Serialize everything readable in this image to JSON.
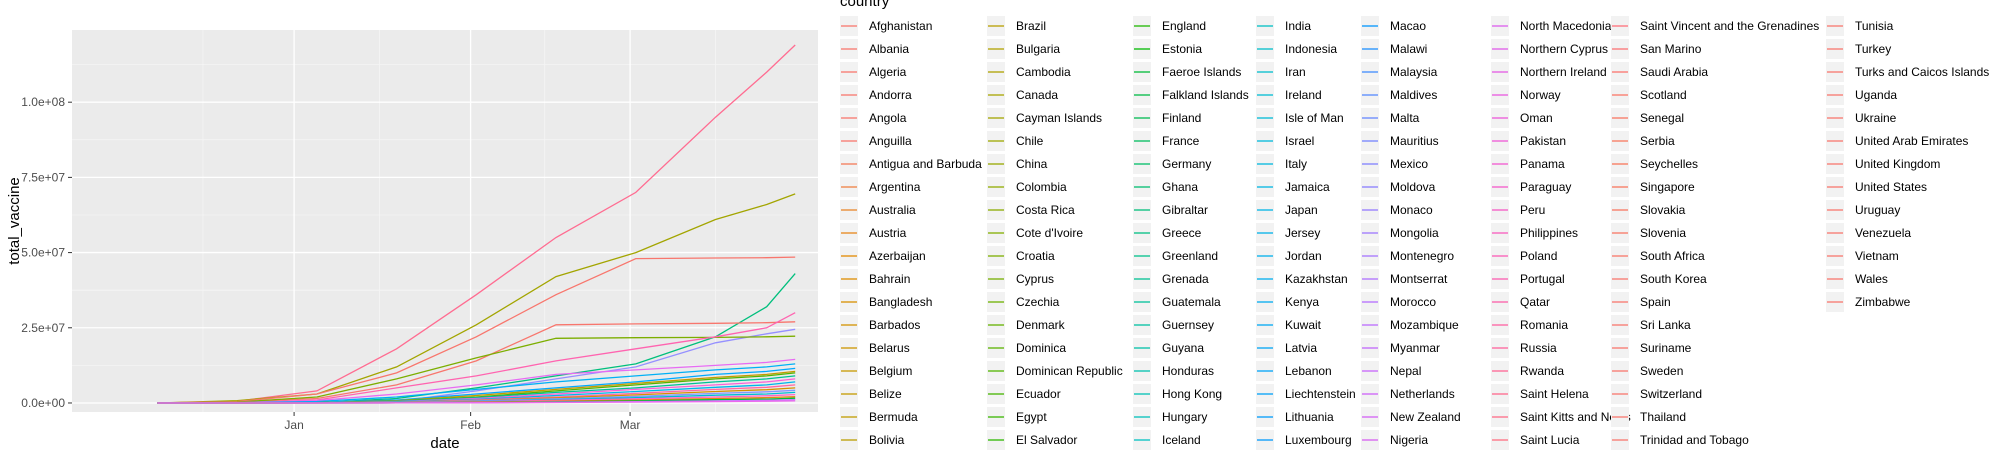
{
  "chart_data": {
    "type": "line",
    "title": "",
    "xlabel": "date",
    "ylabel": "total_vaccine",
    "x_ticks": [
      "Jan",
      "Feb",
      "Mar"
    ],
    "y_ticks": [
      "0.0e+00",
      "2.5e+07",
      "5.0e+07",
      "7.5e+07",
      "1.0e+08"
    ],
    "ylim": [
      -3000000,
      124000000
    ],
    "grid": true,
    "legend_title": "country",
    "legend_position": "right",
    "x_dates": [
      "2020-12-08",
      "2020-12-22",
      "2021-01-05",
      "2021-01-19",
      "2021-02-02",
      "2021-02-16",
      "2021-03-02",
      "2021-03-16",
      "2021-03-25",
      "2021-03-30"
    ],
    "countries": [
      "Afghanistan",
      "Albania",
      "Algeria",
      "Andorra",
      "Angola",
      "Anguilla",
      "Antigua and Barbuda",
      "Argentina",
      "Australia",
      "Austria",
      "Azerbaijan",
      "Bahrain",
      "Bangladesh",
      "Barbados",
      "Belarus",
      "Belgium",
      "Belize",
      "Bermuda",
      "Bolivia",
      "Brazil",
      "Bulgaria",
      "Cambodia",
      "Canada",
      "Cayman Islands",
      "Chile",
      "China",
      "Colombia",
      "Costa Rica",
      "Cote d'Ivoire",
      "Croatia",
      "Cyprus",
      "Czechia",
      "Denmark",
      "Dominica",
      "Dominican Republic",
      "Ecuador",
      "Egypt",
      "El Salvador",
      "England",
      "Estonia",
      "Faeroe Islands",
      "Falkland Islands",
      "Finland",
      "France",
      "Germany",
      "Ghana",
      "Gibraltar",
      "Greece",
      "Greenland",
      "Grenada",
      "Guatemala",
      "Guernsey",
      "Guyana",
      "Honduras",
      "Hong Kong",
      "Hungary",
      "Iceland",
      "India",
      "Indonesia",
      "Iran",
      "Ireland",
      "Isle of Man",
      "Israel",
      "Italy",
      "Jamaica",
      "Japan",
      "Jersey",
      "Jordan",
      "Kazakhstan",
      "Kenya",
      "Kuwait",
      "Latvia",
      "Lebanon",
      "Liechtenstein",
      "Lithuania",
      "Luxembourg",
      "Macao",
      "Malawi",
      "Malaysia",
      "Maldives",
      "Malta",
      "Mauritius",
      "Mexico",
      "Moldova",
      "Monaco",
      "Mongolia",
      "Montenegro",
      "Montserrat",
      "Morocco",
      "Mozambique",
      "Myanmar",
      "Nepal",
      "Netherlands",
      "New Zealand",
      "Nigeria",
      "North Macedonia",
      "Northern Cyprus",
      "Northern Ireland",
      "Norway",
      "Oman",
      "Pakistan",
      "Panama",
      "Paraguay",
      "Peru",
      "Philippines",
      "Poland",
      "Portugal",
      "Qatar",
      "Romania",
      "Russia",
      "Rwanda",
      "Saint Helena",
      "Saint Kitts and Nevis",
      "Saint Lucia",
      "Saint Vincent and the Grenadines",
      "San Marino",
      "Saudi Arabia",
      "Scotland",
      "Senegal",
      "Serbia",
      "Seychelles",
      "Singapore",
      "Slovakia",
      "Slovenia",
      "South Africa",
      "South Korea",
      "Spain",
      "Sri Lanka",
      "Suriname",
      "Sweden",
      "Switzerland",
      "Thailand",
      "Trinidad and Tobago",
      "Tunisia",
      "Turkey",
      "Turks and Caicos Islands",
      "Uganda",
      "Ukraine",
      "United Arab Emirates",
      "United Kingdom",
      "United States",
      "Uruguay",
      "Venezuela",
      "Vietnam",
      "Wales",
      "Zimbabwe"
    ],
    "series": [
      {
        "color": "#FF6C91",
        "values": [
          0,
          600000,
          4000000,
          18000000,
          36000000,
          55000000,
          70000000,
          95000000,
          110000000,
          119000000
        ]
      },
      {
        "color": "#A3A500",
        "values": [
          0,
          800000,
          3000000,
          12000000,
          26000000,
          42000000,
          50000000,
          61000000,
          66000000,
          69500000
        ]
      },
      {
        "color": "#F8766D",
        "values": [
          0,
          500000,
          3000000,
          10000000,
          22000000,
          36000000,
          48000000,
          48200000,
          48300000,
          48500000
        ]
      },
      {
        "color": "#00BF7D",
        "values": [
          0,
          0,
          50000,
          1500000,
          5000000,
          9000000,
          13000000,
          22000000,
          32000000,
          43000000
        ]
      },
      {
        "color": "#F8766D",
        "values": [
          0,
          300000,
          1500000,
          6000000,
          14000000,
          26000000,
          26300000,
          26500000,
          26700000,
          27000000
        ]
      },
      {
        "color": "#9590FF",
        "values": [
          0,
          0,
          0,
          500000,
          4000000,
          8000000,
          12000000,
          20000000,
          23000000,
          24500000
        ]
      },
      {
        "color": "#7CAE00",
        "values": [
          0,
          300000,
          2000000,
          8000000,
          15000000,
          21500000,
          21700000,
          21800000,
          22000000,
          22200000
        ]
      },
      {
        "color": "#FF64B0",
        "values": [
          0,
          100000,
          1000000,
          5000000,
          9000000,
          14000000,
          18000000,
          22000000,
          25000000,
          30000000
        ]
      },
      {
        "color": "#E76BF3",
        "values": [
          0,
          100000,
          800000,
          3000000,
          6000000,
          9500000,
          11000000,
          12500000,
          13500000,
          14500000
        ]
      },
      {
        "color": "#00B0F6",
        "values": [
          0,
          50000,
          500000,
          2000000,
          4500000,
          7000000,
          9000000,
          11000000,
          12000000,
          13000000
        ]
      },
      {
        "color": "#00A9FF",
        "values": [
          0,
          0,
          200000,
          1000000,
          3000000,
          5000000,
          7000000,
          9500000,
          10500000,
          11500000
        ]
      },
      {
        "color": "#C49A00",
        "values": [
          0,
          0,
          100000,
          800000,
          2500000,
          4500000,
          6500000,
          8500000,
          9500000,
          10500000
        ]
      },
      {
        "color": "#53B400",
        "values": [
          0,
          0,
          100000,
          700000,
          2000000,
          4000000,
          6000000,
          8000000,
          9000000,
          10000000
        ]
      },
      {
        "color": "#00C094",
        "values": [
          0,
          0,
          80000,
          600000,
          1800000,
          3500000,
          5000000,
          7000000,
          8000000,
          9000000
        ]
      },
      {
        "color": "#FB61D7",
        "values": [
          0,
          0,
          60000,
          500000,
          1500000,
          3000000,
          4500000,
          6000000,
          7000000,
          8000000
        ]
      },
      {
        "color": "#00B6EB",
        "values": [
          0,
          0,
          50000,
          400000,
          1200000,
          2500000,
          3800000,
          5200000,
          6000000,
          7000000
        ]
      },
      {
        "color": "#FF67A4",
        "values": [
          0,
          0,
          40000,
          300000,
          1000000,
          2000000,
          3200000,
          4500000,
          5200000,
          6000000
        ]
      },
      {
        "color": "#D39200",
        "values": [
          0,
          0,
          30000,
          250000,
          800000,
          1700000,
          2700000,
          3800000,
          4400000,
          5000000
        ]
      },
      {
        "color": "#8494FF",
        "values": [
          0,
          0,
          20000,
          200000,
          700000,
          1400000,
          2200000,
          3200000,
          3700000,
          4200000
        ]
      },
      {
        "color": "#00BDD0",
        "values": [
          0,
          0,
          10000,
          150000,
          500000,
          1100000,
          1800000,
          2600000,
          3000000,
          3500000
        ]
      },
      {
        "color": "#FF61C9",
        "values": [
          0,
          0,
          5000,
          100000,
          400000,
          900000,
          1400000,
          2000000,
          2400000,
          2800000
        ]
      },
      {
        "color": "#E68613",
        "values": [
          0,
          0,
          0,
          50000,
          250000,
          600000,
          1000000,
          1500000,
          1800000,
          2100000
        ]
      },
      {
        "color": "#00BA38",
        "values": [
          0,
          0,
          0,
          30000,
          150000,
          400000,
          700000,
          1100000,
          1300000,
          1600000
        ]
      },
      {
        "color": "#C77CFF",
        "values": [
          0,
          0,
          0,
          20000,
          100000,
          250000,
          450000,
          700000,
          900000,
          1100000
        ]
      },
      {
        "color": "#ED68ED",
        "values": [
          0,
          0,
          0,
          10000,
          50000,
          150000,
          300000,
          450000,
          600000,
          700000
        ]
      }
    ]
  },
  "legend_colors": [
    [
      "#F8766D",
      "#F8766D",
      "#F8766D",
      "#F8766D",
      "#F8766D",
      "#F8766D",
      "#F37B59",
      "#EE8043",
      "#E8852B",
      "#E7861B",
      "#E38900",
      "#DE8C00",
      "#D89000",
      "#D39200",
      "#CD9600",
      "#C79800",
      "#C49A00",
      "#C09B00",
      "#BB9D00"
    ],
    [
      "#B79F00",
      "#B2A100",
      "#ADA200",
      "#A8A400",
      "#A3A500",
      "#9DA700",
      "#97A800",
      "#91AA00",
      "#8BAB00",
      "#84AD00",
      "#7CAE00",
      "#75AF00",
      "#6DB100",
      "#64B200",
      "#5BB300",
      "#51B400",
      "#45B500",
      "#39B600",
      "#2DB700"
    ],
    [
      "#1FB800",
      "#00B900",
      "#00BA38",
      "#00BB45",
      "#00BB52",
      "#00BC5E",
      "#00BD68",
      "#00BE71",
      "#00BE7A",
      "#00BF83",
      "#00C08B",
      "#00C093",
      "#00C19A",
      "#00C1A1",
      "#00C1A8",
      "#00C1AF",
      "#00C1B5",
      "#00C0BB",
      "#00C0C0"
    ],
    [
      "#00BFC4",
      "#00BEC9",
      "#00BDCE",
      "#00BCD3",
      "#00BBD7",
      "#00B9DB",
      "#00B8DE",
      "#00B6E2",
      "#00B4E5",
      "#00B2E8",
      "#00B0EB",
      "#00AEEE",
      "#00ACF0",
      "#00A9F3",
      "#00A6F5",
      "#00A3F7",
      "#00A0F9",
      "#009CFA",
      "#0099FC"
    ],
    [
      "#0095FD",
      "#1E90FE",
      "#3F8CFF",
      "#548AFF",
      "#6587FF",
      "#7384FF",
      "#7F81FF",
      "#8A7EFF",
      "#947BFF",
      "#9D77FF",
      "#A574FF",
      "#AD71FF",
      "#B46EFF",
      "#BB6BFE",
      "#C167FC",
      "#C764FA",
      "#CD62F7",
      "#D260F4",
      "#D75EF0"
    ],
    [
      "#DC5DED",
      "#E05BE9",
      "#E45AE4",
      "#E859DF",
      "#EB58DA",
      "#EE58D5",
      "#F158CF",
      "#F458C9",
      "#F659C3",
      "#F85ABD",
      "#FA5BB6",
      "#FB5DB0",
      "#FC5FA9",
      "#FD61A2",
      "#FE639B",
      "#FE6594",
      "#FE688D",
      "#FE6A86",
      "#FE6D80"
    ],
    [
      "#FD6F79",
      "#FC7273",
      "#FB746E",
      "#FA7668",
      "#F97763",
      "#F8785F",
      "#F8775B",
      "#F8765E",
      "#F87662",
      "#F87665",
      "#F87669",
      "#F8766D",
      "#F8766D"
    ]
  ]
}
